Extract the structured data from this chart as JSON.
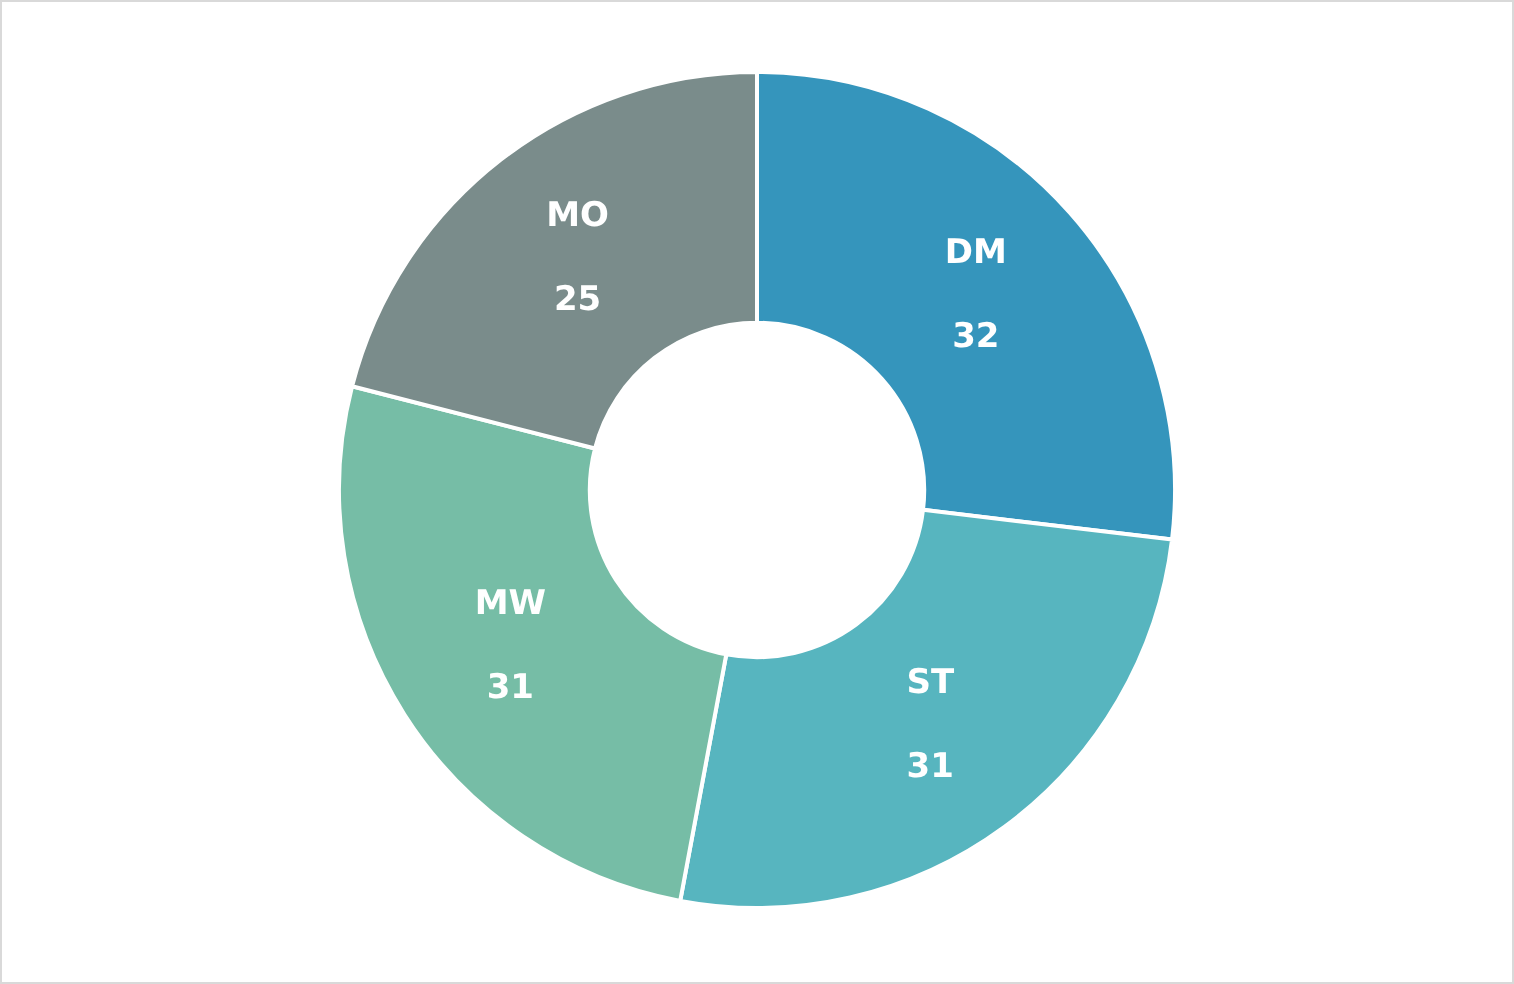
{
  "chart_data": {
    "type": "donut",
    "categories": [
      "DM",
      "ST",
      "MW",
      "MO"
    ],
    "values": [
      32,
      31,
      31,
      25
    ],
    "colors": [
      "#3595bc",
      "#57b5bf",
      "#76bda6",
      "#7a8c8b"
    ],
    "data_labels": true,
    "legend": false
  }
}
